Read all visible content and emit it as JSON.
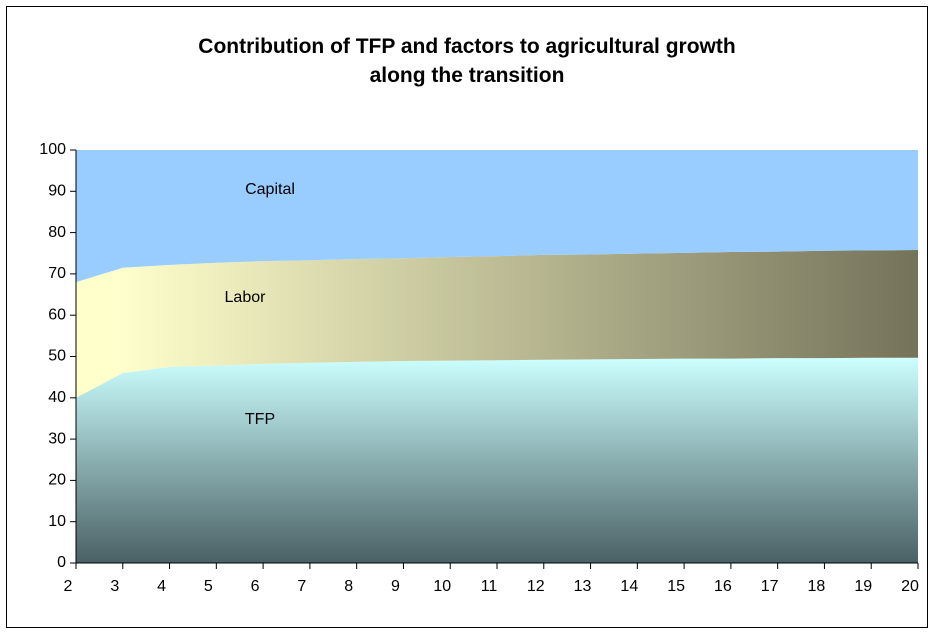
{
  "chart_data": {
    "type": "stacked_area",
    "title": "Contribution of TFP and factors to agricultural growth along the transition",
    "x": [
      2,
      3,
      4,
      5,
      6,
      7,
      8,
      9,
      10,
      11,
      12,
      13,
      14,
      15,
      16,
      17,
      18,
      19,
      20
    ],
    "xlim": [
      2,
      20
    ],
    "xticks": [
      2,
      3,
      4,
      5,
      6,
      7,
      8,
      9,
      10,
      11,
      12,
      13,
      14,
      15,
      16,
      17,
      18,
      19,
      20
    ],
    "ylim": [
      0,
      100
    ],
    "yticks": [
      0,
      10,
      20,
      30,
      40,
      50,
      60,
      70,
      80,
      90,
      100
    ],
    "series": [
      {
        "name": "TFP",
        "color": "#ccffff",
        "values": [
          40,
          46,
          47.5,
          47.8,
          48.2,
          48.5,
          48.7,
          48.9,
          49,
          49.1,
          49.2,
          49.3,
          49.4,
          49.5,
          49.5,
          49.6,
          49.6,
          49.7,
          49.7
        ]
      },
      {
        "name": "Labor",
        "color": "#ffffcc",
        "values": [
          28,
          25.5,
          24.7,
          24.9,
          24.9,
          24.8,
          24.9,
          24.9,
          25.1,
          25.2,
          25.4,
          25.4,
          25.5,
          25.6,
          25.8,
          25.8,
          26,
          26,
          26.1
        ]
      },
      {
        "name": "Capital",
        "color": "#99ccff",
        "values": [
          32,
          28.5,
          27.8,
          27.3,
          26.9,
          26.7,
          26.4,
          26.2,
          25.9,
          25.7,
          25.4,
          25.3,
          25.1,
          24.9,
          24.7,
          24.6,
          24.4,
          24.3,
          24.2
        ]
      }
    ]
  }
}
